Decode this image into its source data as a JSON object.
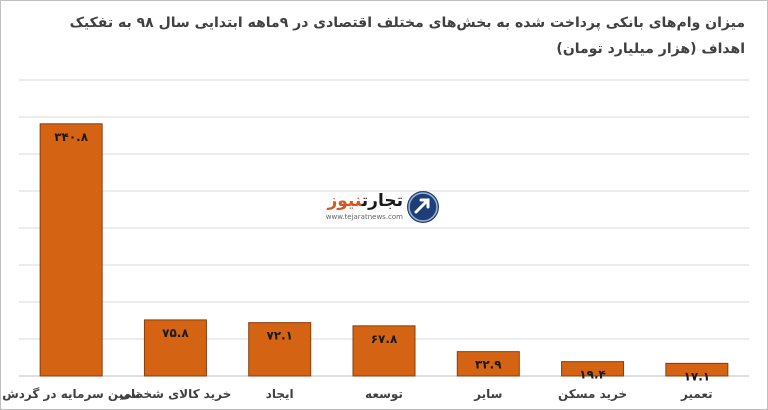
{
  "title_line1": "میزان وام‌های بانکی پرداخت شده به بخش‌های مختلف اقتصادی در ۹ماهه ابتدایی سال ۹۸ به تفکیک",
  "title_line2": "اهداف (هزار میلیارد تومان)",
  "logo": {
    "brand_main": "تجارت",
    "brand_accent": "نیوز",
    "url": "www.tejaratnews.com",
    "icon": "tejaratnews-logo-icon"
  },
  "colors": {
    "bar": "#d46414",
    "bar_stroke": "#8a3d08",
    "grid": "#d9d9d9",
    "text": "#404040"
  },
  "chart_data": {
    "type": "bar",
    "categories": [
      "تامین سرمایه در گردش",
      "خرید کالای شخصی",
      "ایجاد",
      "توسعه",
      "سایر",
      "خرید مسکن",
      "تعمیر"
    ],
    "values": [
      340.8,
      75.8,
      72.1,
      67.8,
      32.9,
      19.4,
      17.1
    ],
    "data_labels": [
      "۳۴۰.۸",
      "۷۵.۸",
      "۷۲.۱",
      "۶۷.۸",
      "۳۲.۹",
      "۱۹.۴",
      "۱۷.۱"
    ],
    "ylim": [
      0,
      400
    ],
    "gridlines": [
      50,
      100,
      150,
      200,
      250,
      300,
      350,
      400
    ],
    "grid": true,
    "legend": "none"
  }
}
